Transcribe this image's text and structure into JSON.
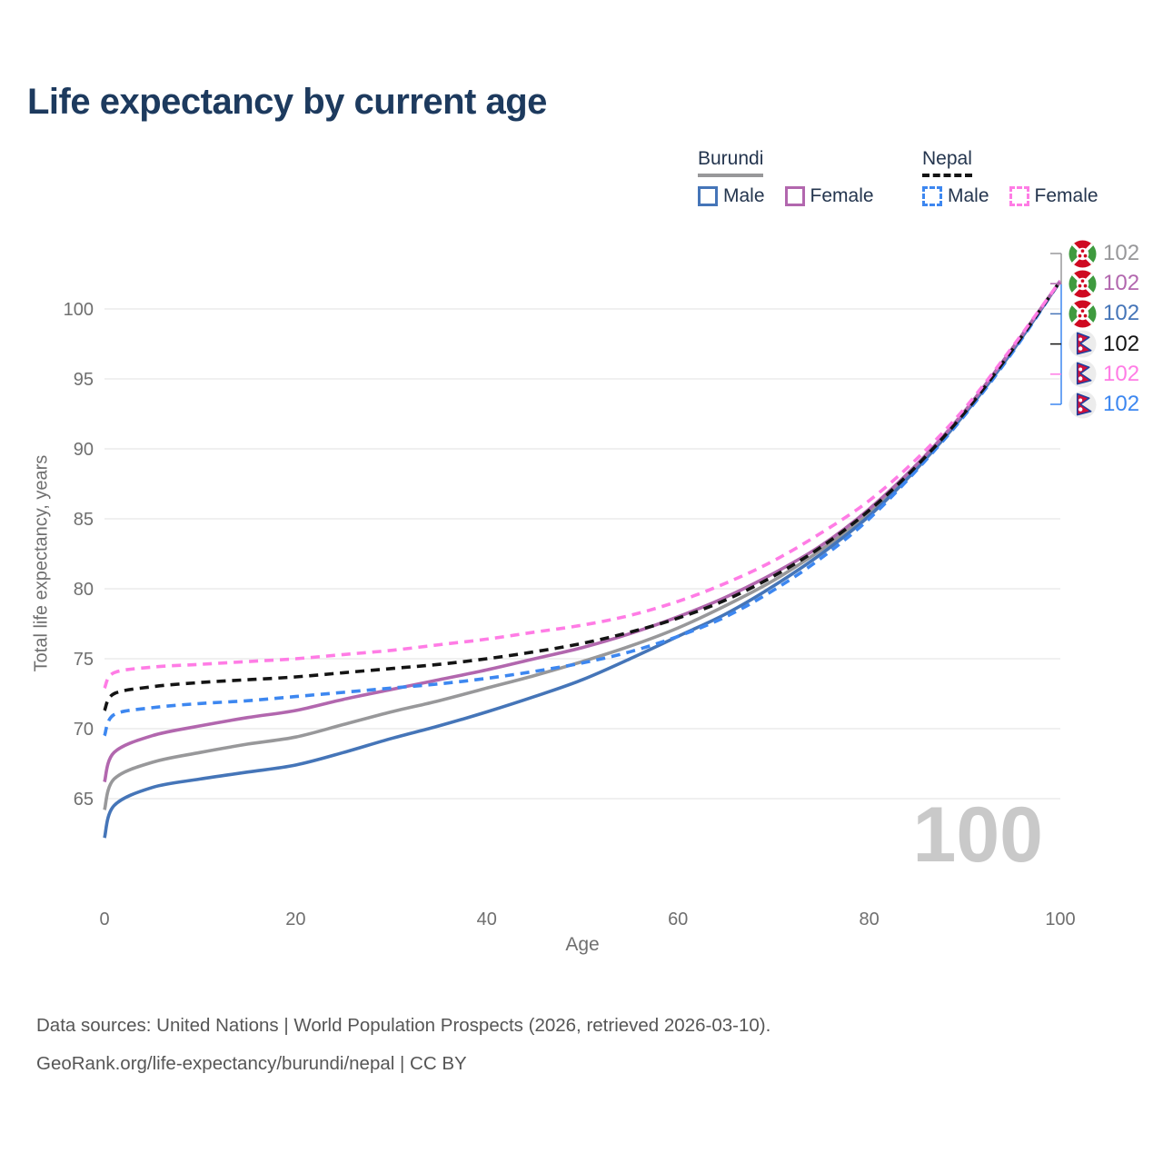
{
  "header": {
    "title": "Life expectancy by current age"
  },
  "legend": {
    "groups": [
      {
        "country": "Burundi",
        "line_style": "solid",
        "total_color": "#98989a",
        "items": [
          {
            "label": "Male",
            "color": "#4575b8"
          },
          {
            "label": "Female",
            "color": "#b267ae"
          }
        ]
      },
      {
        "country": "Nepal",
        "line_style": "dashed",
        "total_color": "#141414",
        "items": [
          {
            "label": "Male",
            "color": "#3d87f0"
          },
          {
            "label": "Female",
            "color": "#ff7ce5"
          }
        ]
      }
    ]
  },
  "chart_data": {
    "type": "line",
    "title": "Life expectancy by current age",
    "xlabel": "Age",
    "ylabel": "Total life expectancy, years",
    "x_ticks": [
      0,
      20,
      40,
      60,
      80,
      100
    ],
    "y_ticks": [
      65,
      70,
      75,
      80,
      85,
      90,
      95,
      100
    ],
    "xlim": [
      0,
      100
    ],
    "ylim": [
      61.5,
      103.5
    ],
    "grid": true,
    "legend_position": "top-right",
    "age_counter": "100",
    "ages": [
      0,
      1,
      5,
      10,
      15,
      20,
      25,
      30,
      35,
      40,
      45,
      50,
      55,
      60,
      65,
      70,
      75,
      80,
      85,
      90,
      95,
      100
    ],
    "series": [
      {
        "name": "Burundi Total",
        "country": "Burundi",
        "sex": "Both",
        "color": "#98989a",
        "dashed": false,
        "end_label": "102",
        "values": [
          64.2,
          66.4,
          67.6,
          68.3,
          68.9,
          69.4,
          70.3,
          71.2,
          72.0,
          72.9,
          73.8,
          74.8,
          75.9,
          77.2,
          78.8,
          80.6,
          82.8,
          85.4,
          88.7,
          92.6,
          97.1,
          102
        ]
      },
      {
        "name": "Burundi Male",
        "country": "Burundi",
        "sex": "Male",
        "color": "#4575b8",
        "dashed": false,
        "end_label": "102",
        "values": [
          62.2,
          64.5,
          65.8,
          66.4,
          66.9,
          67.4,
          68.3,
          69.3,
          70.2,
          71.2,
          72.3,
          73.5,
          75.0,
          76.6,
          78.2,
          80.2,
          82.5,
          85.2,
          88.6,
          92.5,
          97.0,
          102
        ]
      },
      {
        "name": "Burundi Female",
        "country": "Burundi",
        "sex": "Female",
        "color": "#b267ae",
        "dashed": false,
        "end_label": "102",
        "values": [
          66.2,
          68.3,
          69.5,
          70.2,
          70.8,
          71.3,
          72.1,
          72.8,
          73.5,
          74.2,
          75.0,
          75.8,
          76.8,
          78.0,
          79.4,
          81.1,
          83.1,
          85.7,
          88.9,
          92.7,
          97.2,
          102
        ]
      },
      {
        "name": "Nepal Male",
        "country": "Nepal",
        "sex": "Male",
        "color": "#3d87f0",
        "dashed": true,
        "end_label": "102",
        "values": [
          69.5,
          71.0,
          71.5,
          71.8,
          72.0,
          72.3,
          72.6,
          72.9,
          73.2,
          73.6,
          74.1,
          74.7,
          75.5,
          76.6,
          78.0,
          79.9,
          82.2,
          85.0,
          88.5,
          92.4,
          96.9,
          102
        ]
      },
      {
        "name": "Nepal Total",
        "country": "Nepal",
        "sex": "Both",
        "color": "#141414",
        "dashed": true,
        "end_label": "102",
        "values": [
          71.3,
          72.5,
          73.0,
          73.3,
          73.5,
          73.7,
          74.0,
          74.3,
          74.6,
          75.0,
          75.5,
          76.1,
          76.9,
          77.9,
          79.2,
          80.9,
          83.0,
          85.6,
          88.8,
          92.6,
          97.1,
          102
        ]
      },
      {
        "name": "Nepal Female",
        "country": "Nepal",
        "sex": "Female",
        "color": "#ff7ce5",
        "dashed": true,
        "end_label": "102",
        "values": [
          72.9,
          74.0,
          74.4,
          74.6,
          74.8,
          75.0,
          75.3,
          75.6,
          76.0,
          76.4,
          76.9,
          77.4,
          78.1,
          79.1,
          80.4,
          82.0,
          84.0,
          86.3,
          89.3,
          92.9,
          97.3,
          102
        ]
      }
    ]
  },
  "end_labels": [
    {
      "flag": "burundi",
      "series": "Burundi Total",
      "color": "#98989a",
      "value": "102"
    },
    {
      "flag": "burundi",
      "series": "Burundi Female",
      "color": "#b267ae",
      "value": "102"
    },
    {
      "flag": "burundi",
      "series": "Burundi Male",
      "color": "#4575b8",
      "value": "102"
    },
    {
      "flag": "nepal",
      "series": "Nepal Total",
      "color": "#141414",
      "value": "102"
    },
    {
      "flag": "nepal",
      "series": "Nepal Female",
      "color": "#ff7ce5",
      "value": "102"
    },
    {
      "flag": "nepal",
      "series": "Nepal Male",
      "color": "#3d87f0",
      "value": "102"
    }
  ],
  "footer": {
    "line1": "Data sources: United Nations | World Population Prospects (2026, retrieved 2026-03-10).",
    "line2": "GeoRank.org/life-expectancy/burundi/nepal | CC BY"
  }
}
